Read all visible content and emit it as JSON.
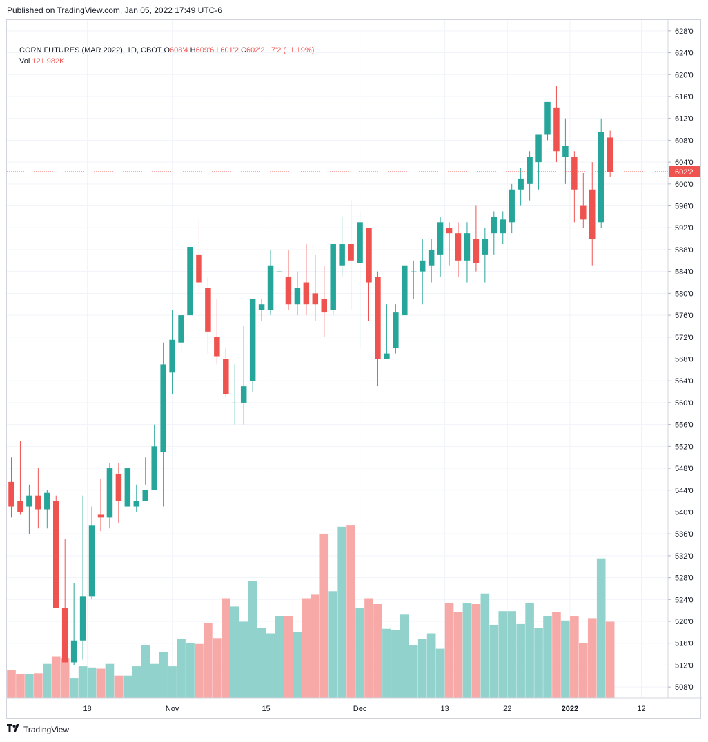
{
  "header": {
    "published_text": "Published on TradingView.com, Jan 05, 2022 17:49 UTC-6"
  },
  "legend": {
    "symbol": "CORN FUTURES (MAR 2022), 1D, CBOT",
    "o_label": "O",
    "o_value": "608'4",
    "h_label": "H",
    "h_value": "609'6",
    "l_label": "L",
    "l_value": "601'2",
    "c_label": "C",
    "c_value": "602'2",
    "change": "−7'2 (−1.19%)",
    "vol_label": "Vol",
    "vol_value": "121.982K"
  },
  "footer": {
    "brand": "TradingView",
    "logo_icon": "tradingview-logo-icon"
  },
  "colors": {
    "up": "#26a69a",
    "down": "#ef5350",
    "vol_up": "#92d2cc",
    "vol_down": "#f7a9a7",
    "grid": "#f0f3fa",
    "last_price_line": "#ef5350"
  },
  "chart_data": {
    "type": "candlestick",
    "symbol": "CORN FUTURES (MAR 2022)",
    "interval": "1D",
    "exchange": "CBOT",
    "y_axis": {
      "position": "right",
      "range": [
        506,
        630
      ],
      "tick_labels": [
        "508'0",
        "512'0",
        "516'0",
        "520'0",
        "524'0",
        "528'0",
        "532'0",
        "536'0",
        "540'0",
        "544'0",
        "548'0",
        "552'0",
        "556'0",
        "560'0",
        "564'0",
        "568'0",
        "572'0",
        "576'0",
        "580'0",
        "584'0",
        "588'0",
        "592'0",
        "596'0",
        "600'0",
        "604'0",
        "608'0",
        "612'0",
        "616'0",
        "620'0",
        "624'0",
        "628'0"
      ]
    },
    "x_axis": {
      "tick_labels": [
        "18",
        "Nov",
        "15",
        "Dec",
        "13",
        "22",
        "2022",
        "12"
      ],
      "tick_bar_index": [
        8.5,
        18,
        28.5,
        39,
        48.5,
        55.5,
        62.5,
        70.5
      ]
    },
    "last_price": {
      "value": 602.25,
      "label": "602'2"
    },
    "volume_scale_max": 1,
    "bars": [
      [
        545.5,
        550,
        539,
        541
      ],
      [
        542,
        553,
        539.5,
        540
      ],
      [
        541,
        545,
        536,
        543
      ],
      [
        543,
        548,
        537,
        540.5
      ],
      [
        540.5,
        544,
        537,
        543.5
      ],
      [
        542,
        543,
        529,
        522.5
      ],
      [
        522.5,
        535,
        516.5,
        512.5
      ],
      [
        512.5,
        527,
        512,
        516.5
      ],
      [
        516.5,
        543,
        513,
        524.5
      ],
      [
        524.5,
        541,
        524,
        537.5
      ],
      [
        539.5,
        546,
        536.5,
        539
      ],
      [
        539,
        549,
        537,
        548
      ],
      [
        547,
        549,
        538,
        542
      ],
      [
        541,
        547,
        541,
        548
      ],
      [
        541,
        545,
        540,
        542
      ],
      [
        542,
        550,
        545,
        544
      ],
      [
        544,
        556,
        545,
        552
      ],
      [
        551,
        571,
        541,
        567
      ],
      [
        565.5,
        577,
        561.5,
        571.5
      ],
      [
        571,
        577,
        569,
        576
      ],
      [
        576,
        589,
        575,
        588.5
      ],
      [
        587,
        593.5,
        580,
        582
      ],
      [
        581,
        583,
        569,
        573
      ],
      [
        572,
        579,
        567,
        568.5
      ],
      [
        568,
        570,
        561,
        561.5
      ],
      [
        560,
        567,
        556,
        560
      ],
      [
        560,
        574,
        556,
        563
      ],
      [
        564,
        578,
        562,
        579
      ],
      [
        577,
        579,
        575,
        578
      ],
      [
        577,
        588,
        576,
        585
      ],
      [
        584,
        584,
        584,
        584
      ],
      [
        583,
        588,
        577,
        578
      ],
      [
        578,
        584,
        576,
        581
      ],
      [
        582,
        589,
        576,
        578
      ],
      [
        580,
        587,
        575,
        578
      ],
      [
        579,
        585,
        572,
        576.5
      ],
      [
        577,
        588,
        576,
        589
      ],
      [
        585,
        594,
        583,
        589
      ],
      [
        589,
        597,
        577,
        586
      ],
      [
        585.5,
        595,
        570,
        593
      ],
      [
        592,
        591,
        575,
        582
      ],
      [
        583,
        584,
        563,
        568
      ],
      [
        568,
        578,
        568,
        569
      ],
      [
        570,
        578,
        569,
        576.5
      ],
      [
        576,
        584,
        576,
        585
      ],
      [
        584,
        586,
        579,
        584
      ],
      [
        584,
        590,
        578,
        586
      ],
      [
        585,
        590,
        582,
        588
      ],
      [
        587,
        594,
        583,
        593
      ],
      [
        592,
        593,
        585,
        591
      ],
      [
        591,
        593,
        583,
        586
      ],
      [
        586,
        593,
        582,
        591
      ],
      [
        590,
        596,
        584,
        585.5
      ],
      [
        587,
        592,
        582,
        590
      ],
      [
        591,
        595,
        587,
        594
      ],
      [
        591,
        595,
        589,
        593.5
      ],
      [
        593,
        600,
        591,
        599
      ],
      [
        599,
        603,
        596,
        601
      ],
      [
        600,
        606,
        597,
        605
      ],
      [
        604,
        608,
        599,
        609
      ],
      [
        609,
        615,
        608,
        615
      ],
      [
        614,
        618,
        604,
        606
      ],
      [
        605,
        612,
        600,
        607
      ],
      [
        605,
        606,
        593,
        599
      ],
      [
        596,
        602,
        592,
        593.5
      ],
      [
        599,
        604,
        585,
        590
      ],
      [
        593,
        612,
        592,
        609.5
      ],
      [
        608.5,
        609.75,
        601.25,
        602.25
      ]
    ],
    "volume": [
      0.24,
      0.2,
      0.2,
      0.21,
      0.29,
      0.35,
      0.34,
      0.17,
      0.27,
      0.26,
      0.25,
      0.29,
      0.19,
      0.19,
      0.27,
      0.45,
      0.29,
      0.39,
      0.27,
      0.5,
      0.47,
      0.46,
      0.64,
      0.51,
      0.85,
      0.78,
      0.65,
      1.0,
      0.6,
      0.55,
      0.7,
      0.7,
      0.56,
      0.85,
      0.88,
      1.4,
      0.91,
      1.46,
      1.47,
      0.77,
      0.85,
      0.8,
      0.59,
      0.58,
      0.71,
      0.45,
      0.5,
      0.55,
      0.42,
      0.81,
      0.73,
      0.81,
      0.8,
      0.89,
      0.62,
      0.74,
      0.74,
      0.63,
      0.81,
      0.6,
      0.7,
      0.73,
      0.66,
      0.7,
      0.47,
      0.68,
      1.19,
      0.65
    ],
    "bar_count_total": 80
  }
}
